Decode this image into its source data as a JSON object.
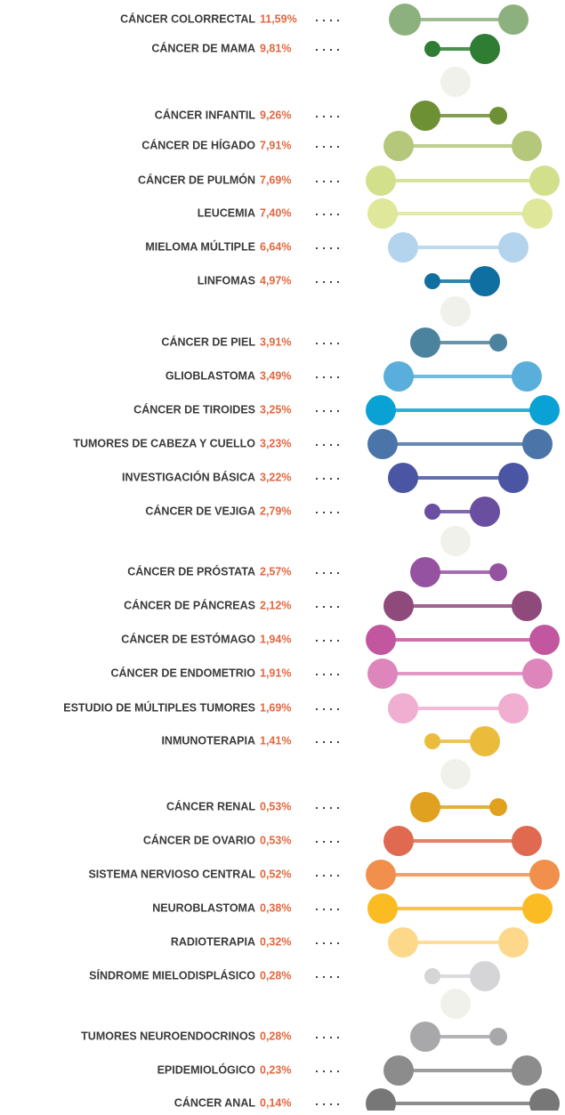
{
  "items": [
    {
      "label": "CÁNCER COLORRECTAL",
      "value": "11,59%"
    },
    {
      "label": "CÁNCER DE MAMA",
      "value": "9,81%"
    },
    {
      "label": "CÁNCER INFANTIL",
      "value": "9,26%"
    },
    {
      "label": "CÁNCER DE HÍGADO",
      "value": "7,91%"
    },
    {
      "label": "CÁNCER DE PULMÓN",
      "value": "7,69%"
    },
    {
      "label": "LEUCEMIA",
      "value": "7,40%"
    },
    {
      "label": "MIELOMA MÚLTIPLE",
      "value": "6,64%"
    },
    {
      "label": "LINFOMAS",
      "value": "4,97%"
    },
    {
      "label": "CÁNCER DE PIEL",
      "value": "3,91%"
    },
    {
      "label": "GLIOBLASTOMA",
      "value": "3,49%"
    },
    {
      "label": "CÁNCER DE TIROIDES",
      "value": "3,25%"
    },
    {
      "label": "TUMORES DE CABEZA Y CUELLO",
      "value": "3,23%"
    },
    {
      "label": "INVESTIGACIÓN BÁSICA",
      "value": "3,22%"
    },
    {
      "label": "CÁNCER DE VEJIGA",
      "value": "2,79%"
    },
    {
      "label": "CÁNCER DE PRÓSTATA",
      "value": "2,57%"
    },
    {
      "label": "CÁNCER DE PÁNCREAS",
      "value": "2,12%"
    },
    {
      "label": "CÁNCER DE ESTÓMAGO",
      "value": "1,94%"
    },
    {
      "label": "CÁNCER DE ENDOMETRIO",
      "value": "1,91%"
    },
    {
      "label": "ESTUDIO DE MÚLTIPLES TUMORES",
      "value": "1,69%"
    },
    {
      "label": "INMUNOTERAPIA",
      "value": "1,41%"
    },
    {
      "label": "CÁNCER RENAL",
      "value": "0,53%"
    },
    {
      "label": "CÁNCER DE OVARIO",
      "value": "0,53%"
    },
    {
      "label": "SISTEMA NERVIOSO CENTRAL",
      "value": "0,52%"
    },
    {
      "label": "NEUROBLASTOMA",
      "value": "0,38%"
    },
    {
      "label": "RADIOTERAPIA",
      "value": "0,32%"
    },
    {
      "label": "SÍNDROME MIELODISPLÁSICO",
      "value": "0,28%"
    },
    {
      "label": "TUMORES NEUROENDOCRINOS",
      "value": "0,28%"
    },
    {
      "label": "EPIDEMIOLÓGICO",
      "value": "0,23%"
    },
    {
      "label": "CÁNCER ANAL",
      "value": "0,14%"
    }
  ]
}
